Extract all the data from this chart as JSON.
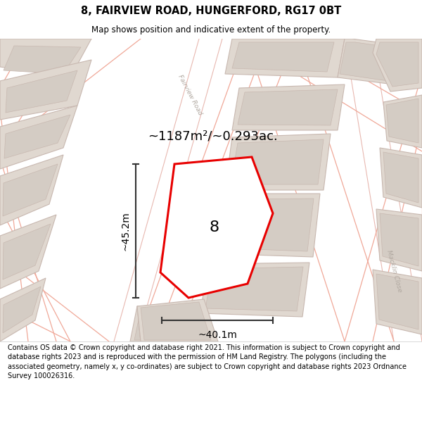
{
  "title": "8, FAIRVIEW ROAD, HUNGERFORD, RG17 0BT",
  "subtitle": "Map shows position and indicative extent of the property.",
  "area_text": "~1187m²/~0.293ac.",
  "width_text": "~40.1m",
  "height_text": "~45.2m",
  "property_number": "8",
  "footer": "Contains OS data © Crown copyright and database right 2021. This information is subject to Crown copyright and database rights 2023 and is reproduced with the permission of HM Land Registry. The polygons (including the associated geometry, namely x, y co-ordinates) are subject to Crown copyright and database rights 2023 Ordnance Survey 100026316.",
  "map_bg": "#f5f0eb",
  "road_white": "#ffffff",
  "road_edge": "#e8b8b0",
  "bld_fill": "#e0d8d0",
  "bld_inner_fill": "#d4ccc4",
  "bld_stroke": "#c8b8b0",
  "parcel_color": "#f0a898",
  "prop_fill": "#ffffff",
  "prop_stroke": "#e80000",
  "dim_color": "#333333",
  "road_label_color": "#aaaaaa",
  "text_color": "#000000"
}
